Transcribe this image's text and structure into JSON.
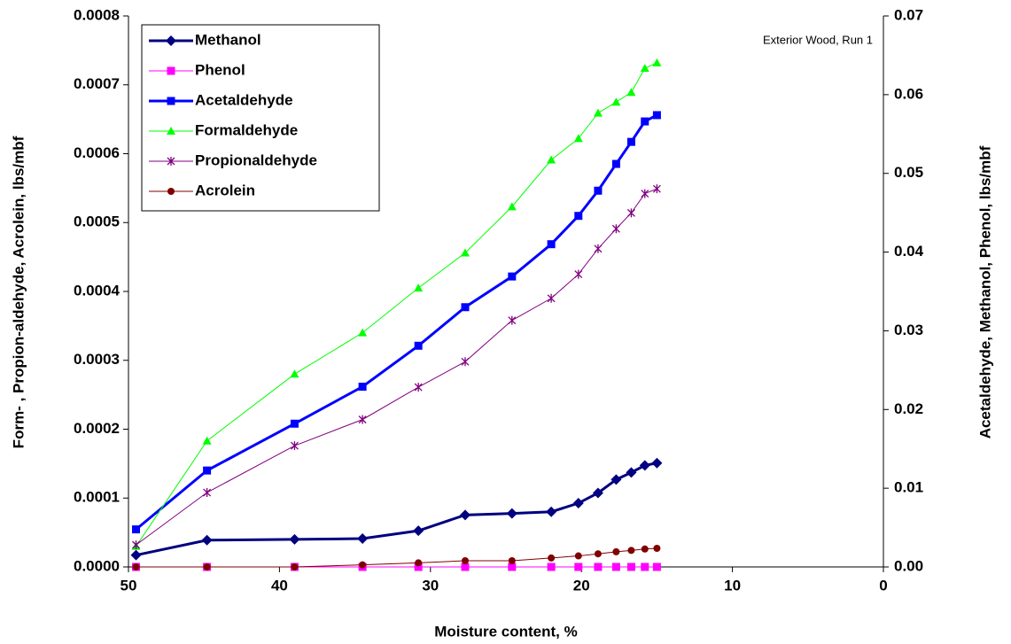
{
  "chart_data": {
    "type": "line",
    "annotation": "Exterior Wood, Run 1",
    "x_label": "Moisture content, %",
    "y_label": "Form- , Propion-aldehyde, Acrolein, lbs/mbf",
    "y2_label": "Acetaldehyde, Methanol, Phenol, lbs/mbf",
    "x": [
      49.5,
      44.8,
      39,
      34.5,
      30.8,
      27.7,
      24.6,
      22,
      20.2,
      18.9,
      17.7,
      16.7,
      15.8,
      15
    ],
    "xlim": [
      50,
      0
    ],
    "xticks": [
      50,
      40,
      30,
      20,
      10,
      0
    ],
    "ylim": [
      0,
      0.0008
    ],
    "yticks": [
      {
        "value": 0,
        "label": "0.0000"
      },
      {
        "value": 0.0001,
        "label": "0.0001"
      },
      {
        "value": 0.0002,
        "label": "0.0002"
      },
      {
        "value": 0.0003,
        "label": "0.0003"
      },
      {
        "value": 0.0004,
        "label": "0.0004"
      },
      {
        "value": 0.0005,
        "label": "0.0005"
      },
      {
        "value": 0.0006,
        "label": "0.0006"
      },
      {
        "value": 0.0007,
        "label": "0.0007"
      },
      {
        "value": 0.0008,
        "label": "0.0008"
      }
    ],
    "y2lim": [
      0,
      0.07
    ],
    "y2ticks": [
      {
        "value": 0,
        "label": "0.00"
      },
      {
        "value": 0.01,
        "label": "0.01"
      },
      {
        "value": 0.02,
        "label": "0.02"
      },
      {
        "value": 0.03,
        "label": "0.03"
      },
      {
        "value": 0.04,
        "label": "0.04"
      },
      {
        "value": 0.05,
        "label": "0.05"
      },
      {
        "value": 0.06,
        "label": "0.06"
      },
      {
        "value": 0.07,
        "label": "0.07"
      }
    ],
    "grid": false,
    "legend": "upper left",
    "series": [
      {
        "name": "Methanol",
        "color": "#000080",
        "marker": "diamond",
        "line_width": 3,
        "axis": "y2",
        "values": [
          0.0015,
          0.0034,
          0.0035,
          0.0036,
          0.0046,
          0.0066,
          0.0068,
          0.007,
          0.0081,
          0.0094,
          0.0111,
          0.012,
          0.0129,
          0.0132
        ]
      },
      {
        "name": "Phenol",
        "color": "#ff00ff",
        "marker": "square",
        "line_width": 1,
        "axis": "y2",
        "values": [
          0,
          0,
          0,
          0,
          0,
          0,
          0,
          0,
          0,
          0,
          0,
          0,
          0,
          0
        ]
      },
      {
        "name": "Acetaldehyde",
        "color": "#0000ff",
        "marker": "square",
        "line_width": 3,
        "axis": "y2",
        "values": [
          0.00477,
          0.01225,
          0.0182,
          0.0229,
          0.0281,
          0.033,
          0.0369,
          0.041,
          0.0446,
          0.0478,
          0.0512,
          0.054,
          0.0566,
          0.0574
        ]
      },
      {
        "name": "Formaldehyde",
        "color": "#00ff00",
        "marker": "triangle",
        "line_width": 1,
        "values": [
          3e-05,
          0.000183,
          0.00028,
          0.00034,
          0.000405,
          0.000456,
          0.000523,
          0.000591,
          0.000622,
          0.000659,
          0.000675,
          0.000689,
          0.000724,
          0.000732
        ]
      },
      {
        "name": "Propionaldehyde",
        "color": "#800080",
        "marker": "star",
        "line_width": 1,
        "values": [
          3.2e-05,
          0.000108,
          0.000176,
          0.000214,
          0.000261,
          0.000298,
          0.000358,
          0.00039,
          0.000425,
          0.000462,
          0.000491,
          0.000514,
          0.000542,
          0.000549
        ]
      },
      {
        "name": "Acrolein",
        "color": "#800000",
        "marker": "circle",
        "line_width": 1,
        "values": [
          0,
          0,
          0,
          3e-06,
          6e-06,
          9e-06,
          9e-06,
          1.3e-05,
          1.6e-05,
          1.9e-05,
          2.2e-05,
          2.4e-05,
          2.6e-05,
          2.7e-05
        ]
      }
    ]
  }
}
